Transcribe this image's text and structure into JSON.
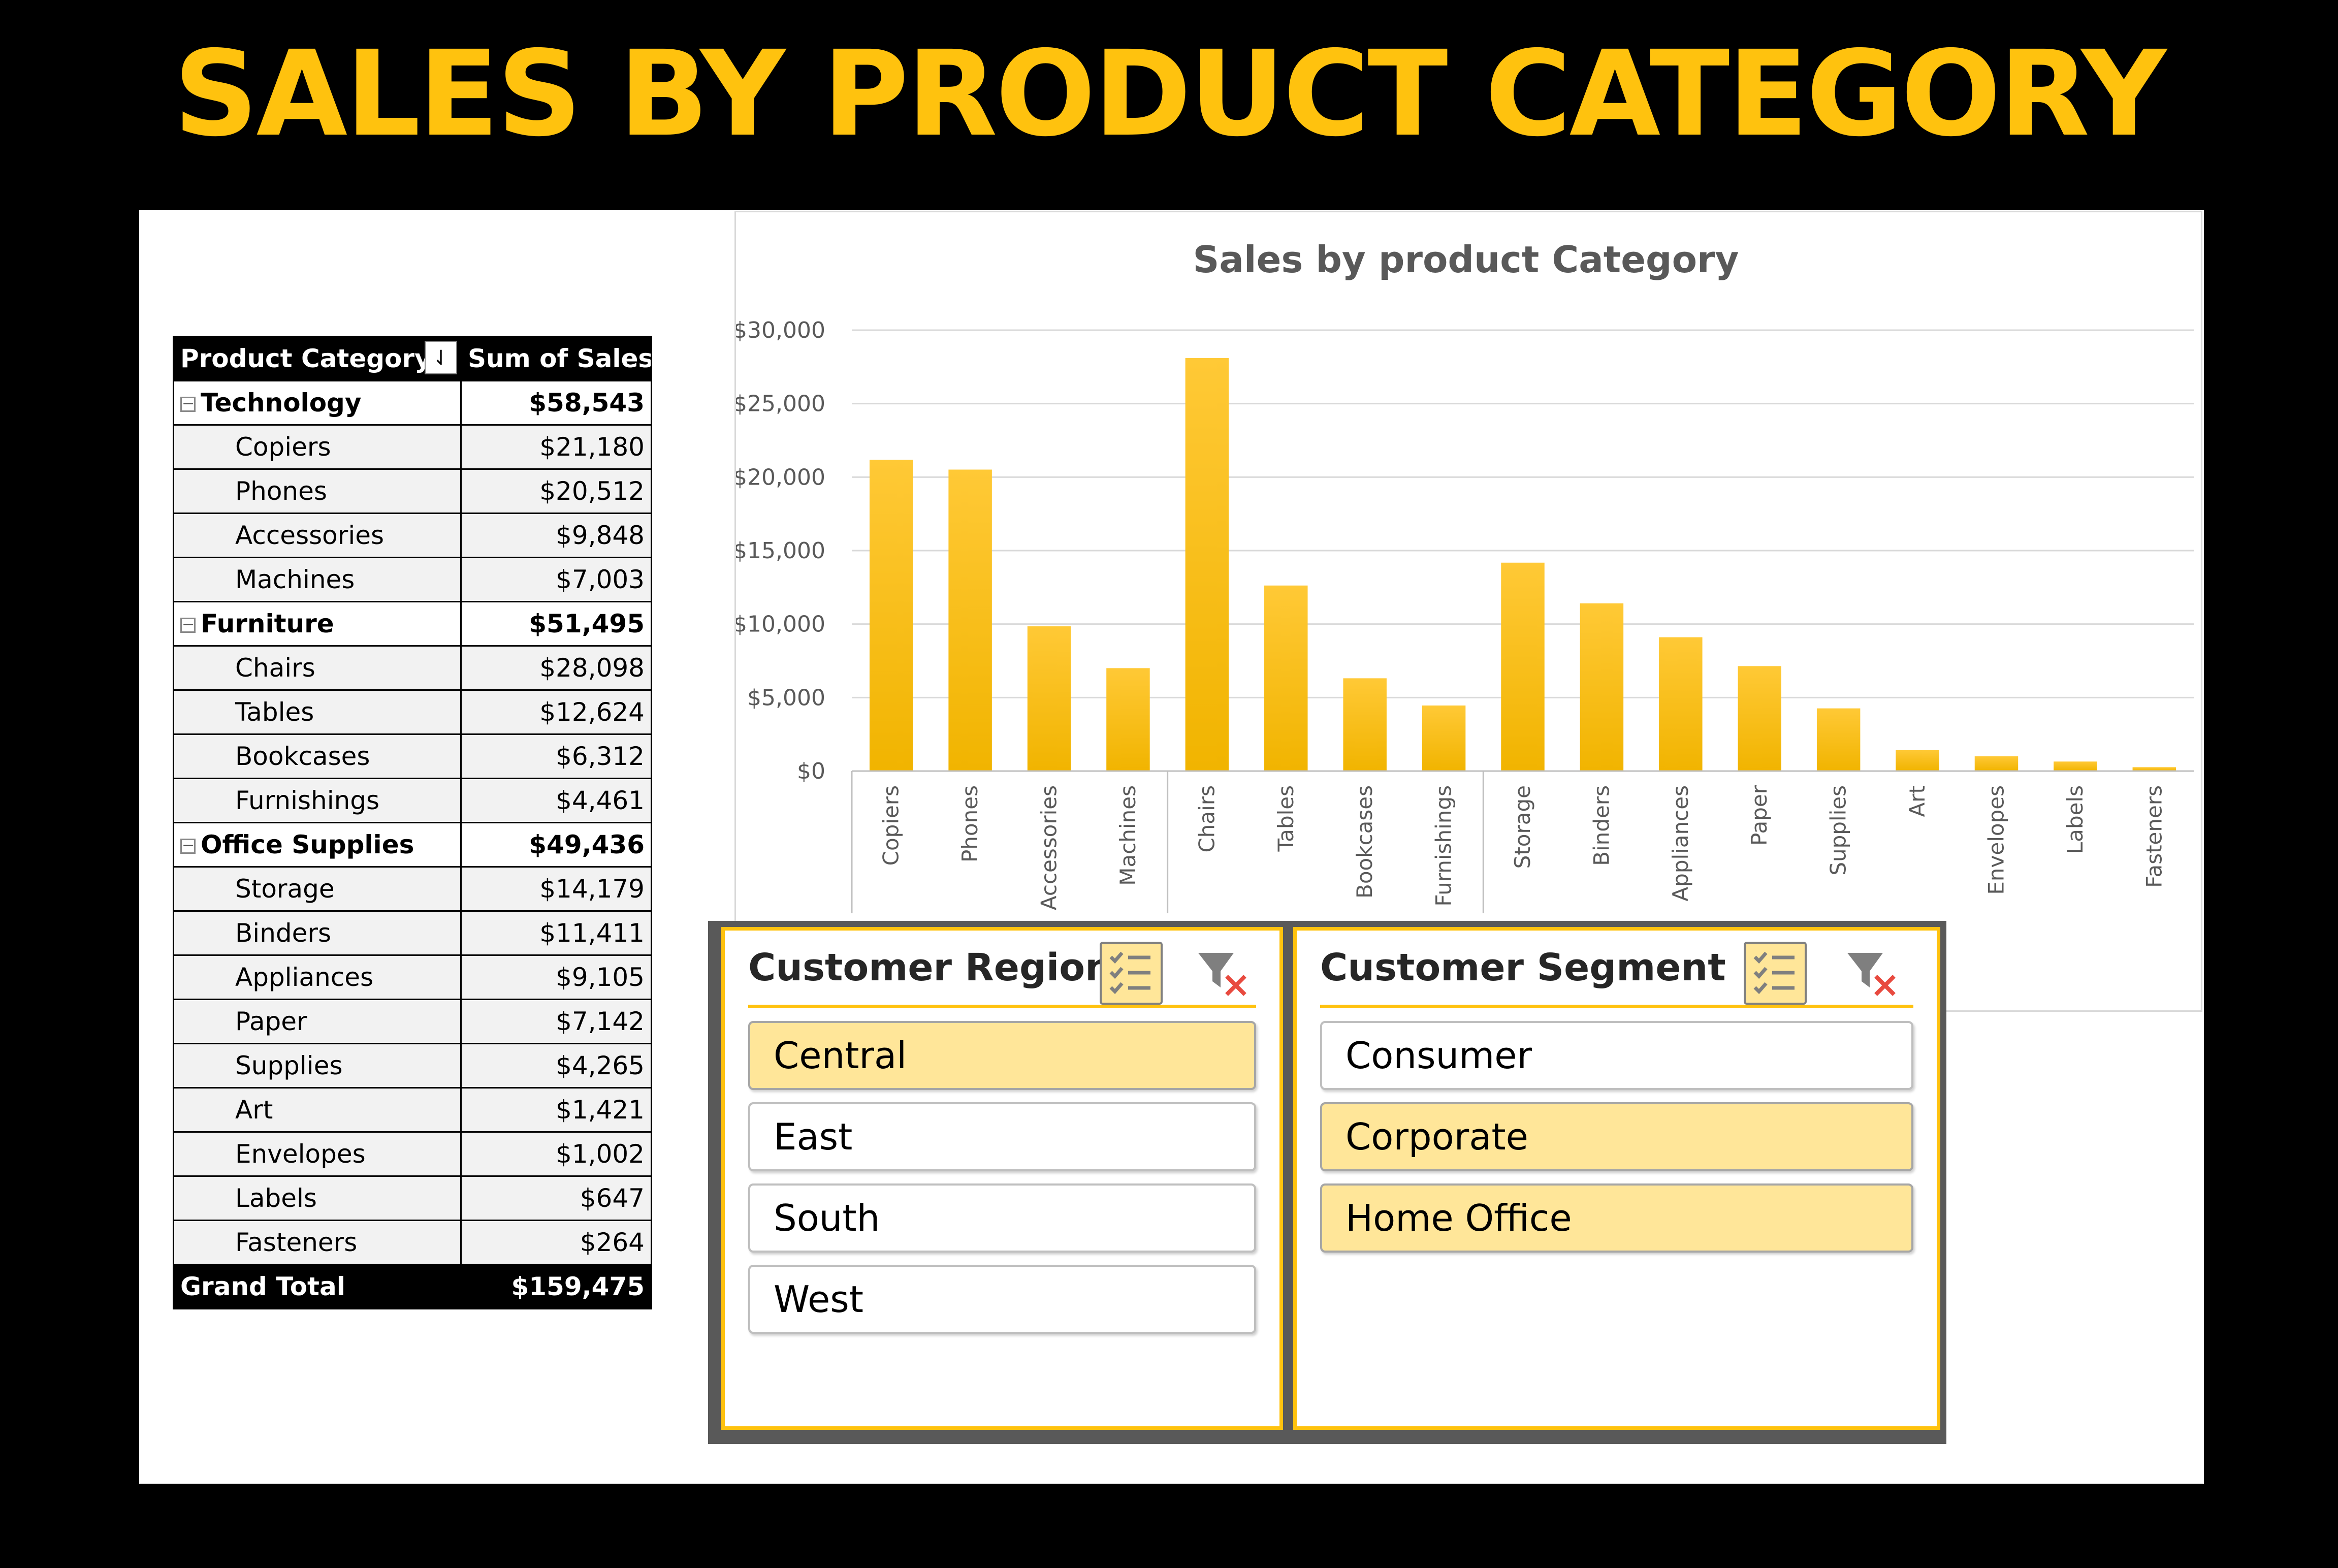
{
  "banner_title": "SALES BY PRODUCT CATEGORY",
  "colors": {
    "accent": "#ffc20e",
    "bar_top": "#ffc936",
    "bar_bottom": "#f1b400",
    "selected": "#ffe699"
  },
  "pivot": {
    "headers": [
      "Product Category",
      "Sum of Sales"
    ],
    "sort_icon": "sort-icon",
    "groups": [
      {
        "name": "Technology",
        "total": "$58,543",
        "items": [
          {
            "name": "Copiers",
            "value": "$21,180"
          },
          {
            "name": "Phones",
            "value": "$20,512"
          },
          {
            "name": "Accessories",
            "value": "$9,848"
          },
          {
            "name": "Machines",
            "value": "$7,003"
          }
        ]
      },
      {
        "name": "Furniture",
        "total": "$51,495",
        "items": [
          {
            "name": "Chairs",
            "value": "$28,098"
          },
          {
            "name": "Tables",
            "value": "$12,624"
          },
          {
            "name": "Bookcases",
            "value": "$6,312"
          },
          {
            "name": "Furnishings",
            "value": "$4,461"
          }
        ]
      },
      {
        "name": "Office Supplies",
        "total": "$49,436",
        "items": [
          {
            "name": "Storage",
            "value": "$14,179"
          },
          {
            "name": "Binders",
            "value": "$11,411"
          },
          {
            "name": "Appliances",
            "value": "$9,105"
          },
          {
            "name": "Paper",
            "value": "$7,142"
          },
          {
            "name": "Supplies",
            "value": "$4,265"
          },
          {
            "name": "Art",
            "value": "$1,421"
          },
          {
            "name": "Envelopes",
            "value": "$1,002"
          },
          {
            "name": "Labels",
            "value": "$647"
          },
          {
            "name": "Fasteners",
            "value": "$264"
          }
        ]
      }
    ],
    "grand_total_label": "Grand Total",
    "grand_total_value": "$159,475"
  },
  "chart_data": {
    "type": "bar",
    "title": "Sales by product Category",
    "categories": [
      "Copiers",
      "Phones",
      "Accessories",
      "Machines",
      "Chairs",
      "Tables",
      "Bookcases",
      "Furnishings",
      "Storage",
      "Binders",
      "Appliances",
      "Paper",
      "Supplies",
      "Art",
      "Envelopes",
      "Labels",
      "Fasteners"
    ],
    "values": [
      21180,
      20512,
      9848,
      7003,
      28098,
      12624,
      6312,
      4461,
      14179,
      11411,
      9105,
      7142,
      4265,
      1421,
      1002,
      647,
      264
    ],
    "group_sizes": [
      4,
      4,
      9
    ],
    "ylim": [
      0,
      30000
    ],
    "yticks": [
      "$0",
      "$5,000",
      "$10,000",
      "$15,000",
      "$20,000",
      "$25,000",
      "$30,000"
    ],
    "grid": true,
    "legend": "none"
  },
  "slicers": {
    "region": {
      "title": "Customer Region",
      "items": [
        {
          "label": "Central",
          "selected": true
        },
        {
          "label": "East",
          "selected": false
        },
        {
          "label": "South",
          "selected": false
        },
        {
          "label": "West",
          "selected": false
        }
      ],
      "multi_select_icon": "multi-select-icon",
      "clear_filter_icon": "clear-filter-icon"
    },
    "segment": {
      "title": "Customer Segment",
      "items": [
        {
          "label": "Consumer",
          "selected": false
        },
        {
          "label": "Corporate",
          "selected": true
        },
        {
          "label": "Home Office",
          "selected": true
        }
      ],
      "multi_select_icon": "multi-select-icon",
      "clear_filter_icon": "clear-filter-icon"
    }
  }
}
